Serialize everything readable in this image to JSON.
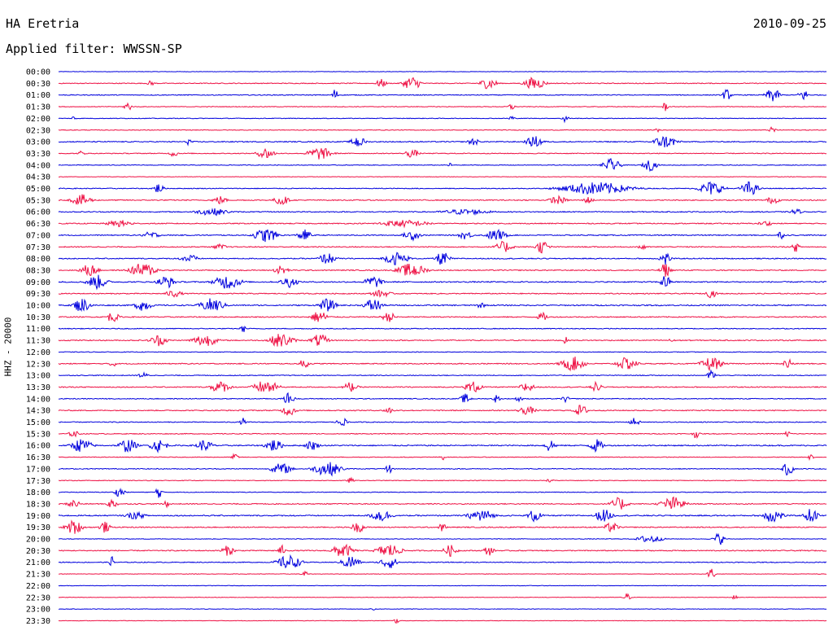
{
  "header": {
    "station": "HA Eretria",
    "date": "2010-09-25",
    "filter": "Applied filter: WWSSN-SP"
  },
  "yaxis": {
    "label": "HHZ - 20000"
  },
  "colors": {
    "odd_trace": "#0000dd",
    "even_trace": "#ee1144",
    "text": "#000000",
    "background": "#ffffff"
  },
  "chart_data": {
    "type": "line",
    "title": "HA Eretria",
    "subtitle": "Applied filter: WWSSN-SP",
    "date": "2010-09-25",
    "ylabel": "HHZ - 20000",
    "trace_minutes": 30,
    "rows": [
      {
        "label": "00:00",
        "color": "blue",
        "base": 0.3,
        "events": []
      },
      {
        "label": "00:30",
        "color": "red",
        "base": 0.5,
        "events": [
          [
            0.12,
            0.4,
            4
          ],
          [
            0.42,
            0.6,
            6
          ],
          [
            0.46,
            1.0,
            10
          ],
          [
            0.56,
            0.8,
            10
          ],
          [
            0.62,
            0.9,
            12
          ]
        ]
      },
      {
        "label": "01:00",
        "color": "blue",
        "base": 0.5,
        "events": [
          [
            0.36,
            1.0,
            3
          ],
          [
            0.87,
            0.8,
            5
          ],
          [
            0.93,
            1.0,
            8
          ],
          [
            0.97,
            0.8,
            6
          ]
        ]
      },
      {
        "label": "01:30",
        "color": "red",
        "base": 0.4,
        "events": [
          [
            0.09,
            0.8,
            4
          ],
          [
            0.59,
            0.5,
            4
          ],
          [
            0.79,
            0.7,
            3
          ]
        ]
      },
      {
        "label": "02:00",
        "color": "blue",
        "base": 0.4,
        "events": [
          [
            0.02,
            0.4,
            3
          ],
          [
            0.59,
            0.6,
            3
          ],
          [
            0.66,
            0.6,
            4
          ]
        ]
      },
      {
        "label": "02:30",
        "color": "red",
        "base": 0.4,
        "events": [
          [
            0.78,
            0.7,
            3
          ],
          [
            0.93,
            0.5,
            4
          ]
        ]
      },
      {
        "label": "03:00",
        "color": "blue",
        "base": 0.6,
        "events": [
          [
            0.17,
            0.5,
            4
          ],
          [
            0.39,
            0.9,
            8
          ],
          [
            0.54,
            0.6,
            6
          ],
          [
            0.62,
            0.8,
            10
          ],
          [
            0.79,
            0.9,
            14
          ]
        ]
      },
      {
        "label": "03:30",
        "color": "red",
        "base": 0.5,
        "events": [
          [
            0.03,
            0.4,
            4
          ],
          [
            0.15,
            0.5,
            5
          ],
          [
            0.27,
            0.8,
            10
          ],
          [
            0.34,
            0.9,
            14
          ],
          [
            0.46,
            0.6,
            8
          ]
        ]
      },
      {
        "label": "04:00",
        "color": "blue",
        "base": 0.4,
        "events": [
          [
            0.51,
            0.3,
            3
          ],
          [
            0.72,
            0.9,
            10
          ],
          [
            0.77,
            0.8,
            8
          ]
        ]
      },
      {
        "label": "04:30",
        "color": "red",
        "base": 0.3,
        "events": []
      },
      {
        "label": "05:00",
        "color": "blue",
        "base": 0.5,
        "events": [
          [
            0.13,
            0.7,
            6
          ],
          [
            0.7,
            0.9,
            40
          ],
          [
            0.85,
            1.0,
            14
          ],
          [
            0.9,
            1.0,
            10
          ]
        ]
      },
      {
        "label": "05:30",
        "color": "red",
        "base": 0.6,
        "events": [
          [
            0.03,
            0.8,
            12
          ],
          [
            0.21,
            0.6,
            8
          ],
          [
            0.29,
            0.8,
            8
          ],
          [
            0.65,
            0.6,
            10
          ],
          [
            0.69,
            0.5,
            6
          ],
          [
            0.93,
            0.5,
            8
          ]
        ]
      },
      {
        "label": "06:00",
        "color": "blue",
        "base": 0.6,
        "events": [
          [
            0.2,
            0.5,
            20
          ],
          [
            0.53,
            0.4,
            30
          ],
          [
            0.96,
            0.5,
            6
          ]
        ]
      },
      {
        "label": "06:30",
        "color": "red",
        "base": 0.6,
        "events": [
          [
            0.08,
            0.5,
            16
          ],
          [
            0.45,
            0.5,
            30
          ],
          [
            0.92,
            0.4,
            8
          ]
        ]
      },
      {
        "label": "07:00",
        "color": "blue",
        "base": 0.6,
        "events": [
          [
            0.12,
            0.5,
            10
          ],
          [
            0.27,
            1.0,
            14
          ],
          [
            0.32,
            0.8,
            8
          ],
          [
            0.46,
            0.7,
            10
          ],
          [
            0.53,
            0.6,
            8
          ],
          [
            0.57,
            0.8,
            12
          ],
          [
            0.94,
            0.6,
            4
          ]
        ]
      },
      {
        "label": "07:30",
        "color": "red",
        "base": 0.6,
        "events": [
          [
            0.21,
            0.4,
            8
          ],
          [
            0.58,
            0.8,
            10
          ],
          [
            0.63,
            0.9,
            8
          ],
          [
            0.76,
            0.7,
            4
          ],
          [
            0.96,
            0.7,
            4
          ]
        ]
      },
      {
        "label": "08:00",
        "color": "blue",
        "base": 0.6,
        "events": [
          [
            0.17,
            0.6,
            10
          ],
          [
            0.35,
            0.8,
            10
          ],
          [
            0.44,
            0.9,
            14
          ],
          [
            0.5,
            1.0,
            8
          ],
          [
            0.79,
            1.0,
            6
          ]
        ]
      },
      {
        "label": "08:30",
        "color": "red",
        "base": 0.6,
        "events": [
          [
            0.04,
            0.9,
            10
          ],
          [
            0.11,
            1.0,
            16
          ],
          [
            0.29,
            0.7,
            8
          ],
          [
            0.46,
            1.0,
            16
          ],
          [
            0.79,
            1.0,
            6
          ]
        ]
      },
      {
        "label": "09:00",
        "color": "blue",
        "base": 0.7,
        "events": [
          [
            0.05,
            1.0,
            12
          ],
          [
            0.14,
            0.9,
            10
          ],
          [
            0.22,
            1.0,
            16
          ],
          [
            0.3,
            0.8,
            10
          ],
          [
            0.41,
            0.9,
            10
          ],
          [
            0.79,
            1.0,
            6
          ]
        ]
      },
      {
        "label": "09:30",
        "color": "red",
        "base": 0.6,
        "events": [
          [
            0.15,
            0.5,
            10
          ],
          [
            0.42,
            0.5,
            12
          ],
          [
            0.85,
            0.6,
            6
          ]
        ]
      },
      {
        "label": "10:00",
        "color": "blue",
        "base": 0.7,
        "events": [
          [
            0.03,
            1.0,
            10
          ],
          [
            0.11,
            0.8,
            10
          ],
          [
            0.2,
            1.0,
            14
          ],
          [
            0.35,
            0.9,
            10
          ],
          [
            0.41,
            1.0,
            10
          ],
          [
            0.55,
            0.6,
            4
          ]
        ]
      },
      {
        "label": "10:30",
        "color": "red",
        "base": 0.6,
        "events": [
          [
            0.07,
            0.7,
            8
          ],
          [
            0.34,
            0.9,
            10
          ],
          [
            0.43,
            0.7,
            8
          ],
          [
            0.63,
            0.6,
            6
          ]
        ]
      },
      {
        "label": "11:00",
        "color": "blue",
        "base": 0.5,
        "events": [
          [
            0.24,
            0.6,
            3
          ]
        ]
      },
      {
        "label": "11:30",
        "color": "red",
        "base": 0.6,
        "events": [
          [
            0.13,
            0.8,
            10
          ],
          [
            0.19,
            0.9,
            14
          ],
          [
            0.29,
            1.0,
            14
          ],
          [
            0.34,
            0.9,
            10
          ],
          [
            0.66,
            0.5,
            3
          ],
          [
            0.8,
            0.5,
            4
          ]
        ]
      },
      {
        "label": "12:00",
        "color": "blue",
        "base": 0.4,
        "events": []
      },
      {
        "label": "12:30",
        "color": "red",
        "base": 0.6,
        "events": [
          [
            0.07,
            0.6,
            4
          ],
          [
            0.32,
            0.7,
            6
          ],
          [
            0.67,
            1.0,
            14
          ],
          [
            0.74,
            0.9,
            12
          ],
          [
            0.85,
            1.0,
            12
          ],
          [
            0.95,
            0.8,
            6
          ]
        ]
      },
      {
        "label": "13:00",
        "color": "blue",
        "base": 0.5,
        "events": [
          [
            0.11,
            0.4,
            6
          ],
          [
            0.85,
            1.0,
            4
          ]
        ]
      },
      {
        "label": "13:30",
        "color": "red",
        "base": 0.6,
        "events": [
          [
            0.21,
            0.8,
            12
          ],
          [
            0.27,
            1.0,
            14
          ],
          [
            0.38,
            0.7,
            8
          ],
          [
            0.54,
            0.8,
            10
          ],
          [
            0.61,
            0.8,
            8
          ],
          [
            0.7,
            0.7,
            6
          ]
        ]
      },
      {
        "label": "14:00",
        "color": "blue",
        "base": 0.5,
        "events": [
          [
            0.3,
            0.9,
            6
          ],
          [
            0.53,
            0.7,
            6
          ],
          [
            0.57,
            0.6,
            4
          ],
          [
            0.6,
            0.5,
            4
          ],
          [
            0.66,
            0.5,
            4
          ]
        ]
      },
      {
        "label": "14:30",
        "color": "red",
        "base": 0.6,
        "events": [
          [
            0.3,
            0.8,
            8
          ],
          [
            0.43,
            0.5,
            6
          ],
          [
            0.61,
            0.6,
            10
          ],
          [
            0.68,
            0.8,
            8
          ]
        ]
      },
      {
        "label": "15:00",
        "color": "blue",
        "base": 0.5,
        "events": [
          [
            0.24,
            0.6,
            3
          ],
          [
            0.37,
            0.5,
            8
          ],
          [
            0.75,
            0.6,
            6
          ]
        ]
      },
      {
        "label": "15:30",
        "color": "red",
        "base": 0.5,
        "events": [
          [
            0.02,
            0.5,
            6
          ],
          [
            0.83,
            0.6,
            4
          ],
          [
            0.95,
            0.5,
            4
          ]
        ]
      },
      {
        "label": "16:00",
        "color": "blue",
        "base": 0.7,
        "events": [
          [
            0.03,
            1.0,
            12
          ],
          [
            0.09,
            1.0,
            10
          ],
          [
            0.13,
            0.9,
            10
          ],
          [
            0.19,
            0.8,
            10
          ],
          [
            0.28,
            0.9,
            10
          ],
          [
            0.33,
            0.7,
            8
          ],
          [
            0.64,
            1.0,
            6
          ],
          [
            0.7,
            0.9,
            8
          ]
        ]
      },
      {
        "label": "16:30",
        "color": "red",
        "base": 0.4,
        "events": [
          [
            0.23,
            0.5,
            4
          ],
          [
            0.5,
            0.4,
            3
          ],
          [
            0.98,
            0.6,
            3
          ]
        ]
      },
      {
        "label": "17:00",
        "color": "blue",
        "base": 0.5,
        "events": [
          [
            0.29,
            0.8,
            12
          ],
          [
            0.35,
            1.0,
            16
          ],
          [
            0.43,
            0.7,
            4
          ],
          [
            0.95,
            1.0,
            6
          ]
        ]
      },
      {
        "label": "17:30",
        "color": "red",
        "base": 0.4,
        "events": [
          [
            0.38,
            0.4,
            4
          ],
          [
            0.64,
            0.4,
            4
          ]
        ]
      },
      {
        "label": "18:00",
        "color": "blue",
        "base": 0.4,
        "events": [
          [
            0.08,
            0.7,
            6
          ],
          [
            0.13,
            0.9,
            4
          ]
        ]
      },
      {
        "label": "18:30",
        "color": "red",
        "base": 0.6,
        "events": [
          [
            0.02,
            0.6,
            8
          ],
          [
            0.07,
            0.7,
            6
          ],
          [
            0.14,
            0.5,
            4
          ],
          [
            0.73,
            0.9,
            10
          ],
          [
            0.8,
            1.0,
            14
          ]
        ]
      },
      {
        "label": "19:00",
        "color": "blue",
        "base": 0.7,
        "events": [
          [
            0.1,
            0.5,
            12
          ],
          [
            0.42,
            0.9,
            12
          ],
          [
            0.55,
            1.0,
            14
          ],
          [
            0.62,
            0.9,
            8
          ],
          [
            0.71,
            0.9,
            10
          ],
          [
            0.93,
            1.0,
            12
          ],
          [
            0.98,
            1.0,
            8
          ]
        ]
      },
      {
        "label": "19:30",
        "color": "red",
        "base": 0.6,
        "events": [
          [
            0.02,
            1.0,
            10
          ],
          [
            0.06,
            0.8,
            6
          ],
          [
            0.39,
            0.7,
            8
          ],
          [
            0.5,
            0.7,
            4
          ],
          [
            0.72,
            0.7,
            8
          ]
        ]
      },
      {
        "label": "20:00",
        "color": "blue",
        "base": 0.4,
        "events": [
          [
            0.77,
            0.6,
            14
          ],
          [
            0.86,
            0.9,
            6
          ]
        ]
      },
      {
        "label": "20:30",
        "color": "red",
        "base": 0.6,
        "events": [
          [
            0.22,
            0.7,
            8
          ],
          [
            0.29,
            0.8,
            4
          ],
          [
            0.37,
            1.0,
            12
          ],
          [
            0.43,
            1.0,
            14
          ],
          [
            0.51,
            0.8,
            8
          ],
          [
            0.56,
            0.7,
            6
          ]
        ]
      },
      {
        "label": "21:00",
        "color": "blue",
        "base": 0.5,
        "events": [
          [
            0.07,
            0.9,
            3
          ],
          [
            0.3,
            1.0,
            14
          ],
          [
            0.38,
            1.0,
            10
          ],
          [
            0.43,
            0.9,
            10
          ]
        ]
      },
      {
        "label": "21:30",
        "color": "red",
        "base": 0.3,
        "events": [
          [
            0.32,
            0.5,
            4
          ],
          [
            0.85,
            0.9,
            4
          ]
        ]
      },
      {
        "label": "22:00",
        "color": "blue",
        "base": 0.3,
        "events": []
      },
      {
        "label": "22:30",
        "color": "red",
        "base": 0.3,
        "events": [
          [
            0.74,
            0.6,
            4
          ],
          [
            0.88,
            0.4,
            3
          ]
        ]
      },
      {
        "label": "23:00",
        "color": "blue",
        "base": 0.3,
        "events": [
          [
            0.41,
            0.3,
            3
          ]
        ]
      },
      {
        "label": "23:30",
        "color": "red",
        "base": 0.3,
        "events": [
          [
            0.44,
            0.4,
            3
          ]
        ]
      }
    ]
  }
}
